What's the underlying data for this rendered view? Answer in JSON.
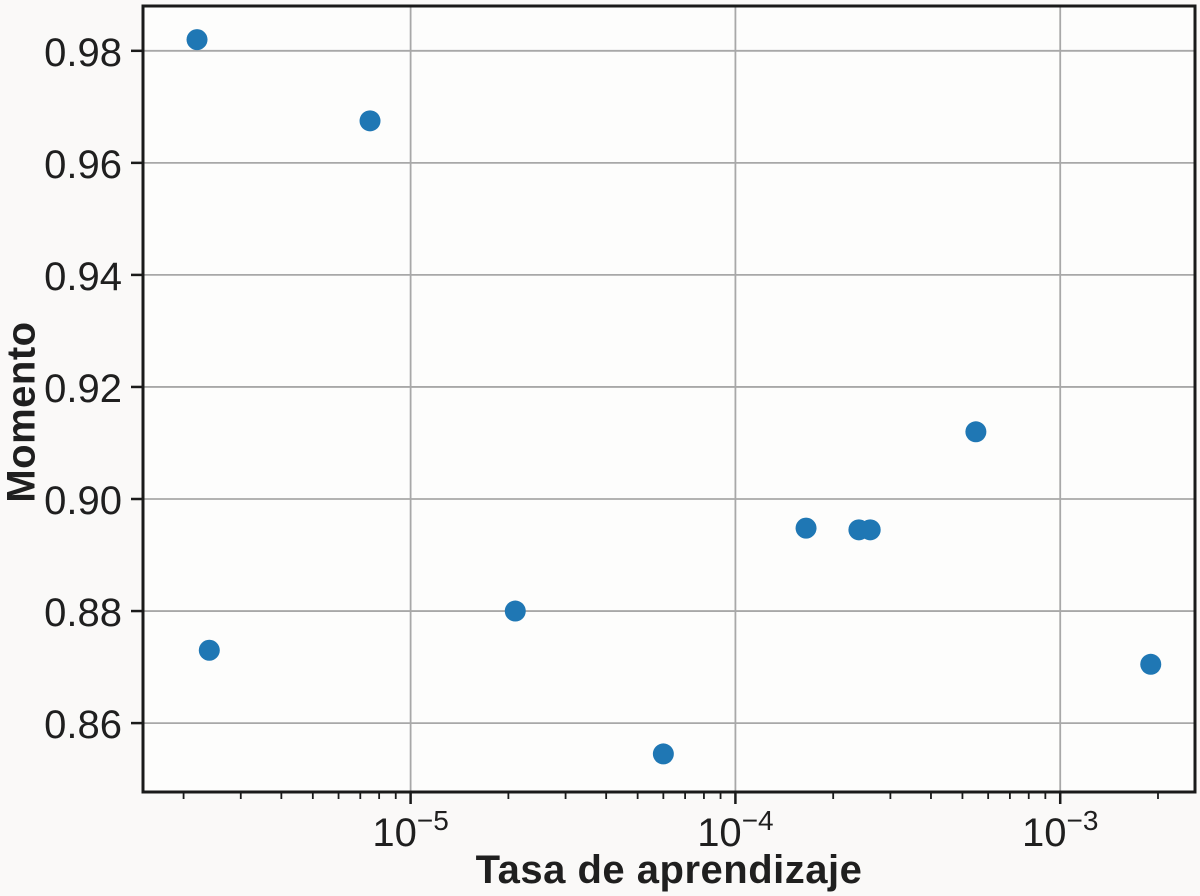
{
  "chart_data": {
    "type": "scatter",
    "title": "",
    "xlabel": "Tasa de aprendizaje",
    "ylabel": "Momento",
    "x_scale": "log",
    "y_scale": "linear",
    "xlim": [
      1.5e-06,
      0.0026
    ],
    "ylim": [
      0.8477,
      0.988
    ],
    "grid": true,
    "legend": "none",
    "points": [
      {
        "x": 2.2e-06,
        "y": 0.982
      },
      {
        "x": 2.4e-06,
        "y": 0.873
      },
      {
        "x": 7.5e-06,
        "y": 0.9675
      },
      {
        "x": 2.1e-05,
        "y": 0.88
      },
      {
        "x": 6e-05,
        "y": 0.8545
      },
      {
        "x": 0.000165,
        "y": 0.8948
      },
      {
        "x": 0.00024,
        "y": 0.8945
      },
      {
        "x": 0.00026,
        "y": 0.8945
      },
      {
        "x": 0.00055,
        "y": 0.912
      },
      {
        "x": 0.0019,
        "y": 0.8705
      }
    ],
    "xticks": [
      {
        "value": 1e-05,
        "base": "10",
        "sup": "−5"
      },
      {
        "value": 0.0001,
        "base": "10",
        "sup": "−4"
      },
      {
        "value": 0.001,
        "base": "10",
        "sup": "−3"
      }
    ],
    "yticks": [
      {
        "value": 0.98,
        "label": "0.98"
      },
      {
        "value": 0.96,
        "label": "0.96"
      },
      {
        "value": 0.94,
        "label": "0.94"
      },
      {
        "value": 0.92,
        "label": "0.92"
      },
      {
        "value": 0.9,
        "label": "0.90"
      },
      {
        "value": 0.88,
        "label": "0.88"
      },
      {
        "value": 0.86,
        "label": "0.86"
      }
    ],
    "colors": {
      "marker": "#1f77b4",
      "grid": "#a8a8a8",
      "spine": "#1a1a1a",
      "tick": "#1a1a1a",
      "text": "#1f1f1f",
      "plot_bg": "#fdfdfc"
    },
    "marker_radius_px": 10.5
  }
}
